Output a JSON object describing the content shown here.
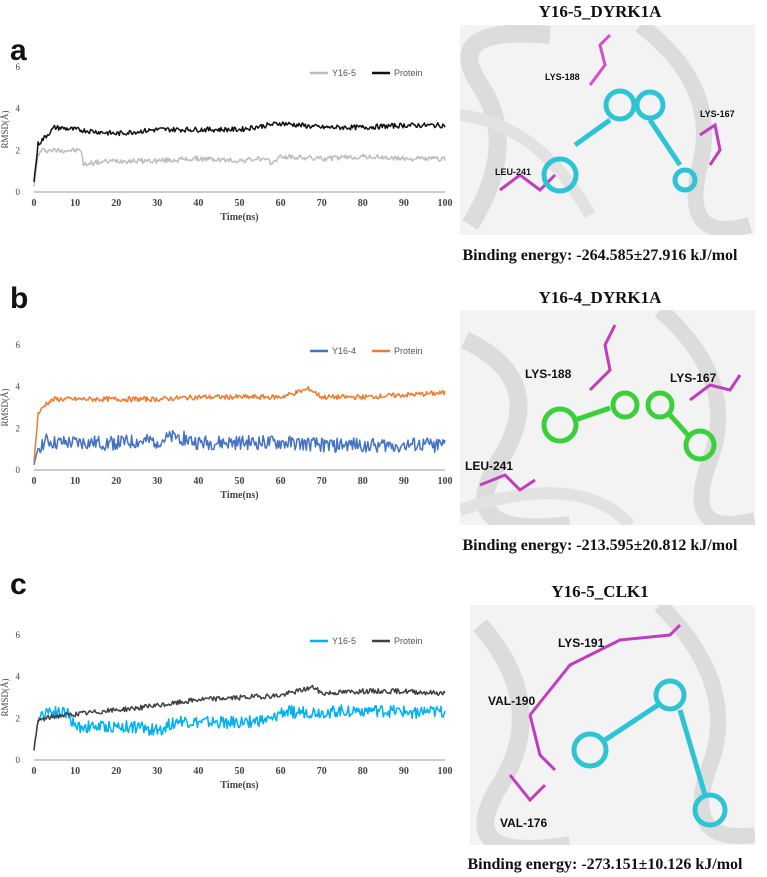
{
  "panels": [
    {
      "letter": "a",
      "complex_title": "Y16-5_DYRK1A",
      "binding_energy": "Binding energy: -264.585±27.916 kJ/mol",
      "residues": [
        "LYS-188",
        "LYS-167",
        "LEU-241"
      ],
      "ligand_color": "#2ec4d6"
    },
    {
      "letter": "b",
      "complex_title": "Y16-4_DYRK1A",
      "binding_energy": "Binding energy: -213.595±20.812 kJ/mol",
      "residues": [
        "LYS-188",
        "LYS-167",
        "LEU-241"
      ],
      "ligand_color": "#3ccf3c"
    },
    {
      "letter": "c",
      "complex_title": "Y16-5_CLK1",
      "binding_energy": "Binding energy: -273.151±10.126 kJ/mol",
      "residues": [
        "LYS-191",
        "VAL-190",
        "VAL-176"
      ],
      "ligand_color": "#2ec4d6"
    }
  ],
  "chart_data": [
    {
      "type": "line",
      "title": "",
      "xlabel": "Time(ns)",
      "ylabel": "RMSD(Å)",
      "xlim": [
        0,
        100
      ],
      "ylim": [
        0,
        6
      ],
      "xticks": [
        "0",
        "10",
        "20",
        "30",
        "40",
        "50",
        "60",
        "70",
        "80",
        "90",
        "100"
      ],
      "yticks": [
        "0",
        "2",
        "4",
        "6"
      ],
      "legend_position": "top-right",
      "series": [
        {
          "name": "Y16-5",
          "color": "#bdbdbd",
          "x": [
            0,
            1,
            2,
            4,
            6,
            8,
            10,
            11.5,
            12,
            14,
            20,
            30,
            40,
            50,
            55,
            58,
            60,
            70,
            80,
            90,
            100
          ],
          "values": [
            0.3,
            1.8,
            2.0,
            2.0,
            2.0,
            2.0,
            2.0,
            2.0,
            1.3,
            1.4,
            1.5,
            1.5,
            1.6,
            1.5,
            1.6,
            1.4,
            1.7,
            1.6,
            1.7,
            1.6,
            1.6
          ]
        },
        {
          "name": "Protein",
          "color": "#111111",
          "x": [
            0,
            1,
            3,
            5,
            10,
            20,
            30,
            40,
            50,
            60,
            70,
            80,
            90,
            100
          ],
          "values": [
            0.5,
            2.3,
            2.7,
            3.1,
            3.0,
            2.8,
            3.0,
            3.0,
            3.0,
            3.3,
            3.1,
            3.1,
            3.2,
            3.2
          ]
        }
      ]
    },
    {
      "type": "line",
      "title": "",
      "xlabel": "Time(ns)",
      "ylabel": "RMSD(Å)",
      "xlim": [
        0,
        100
      ],
      "ylim": [
        0,
        6
      ],
      "xticks": [
        "0",
        "10",
        "20",
        "30",
        "40",
        "50",
        "60",
        "70",
        "80",
        "90",
        "100"
      ],
      "yticks": [
        "0",
        "2",
        "4",
        "6"
      ],
      "legend_position": "top-right",
      "series": [
        {
          "name": "Y16-4",
          "color": "#4472c4",
          "x": [
            0,
            1,
            3,
            5,
            10,
            20,
            30,
            35,
            40,
            50,
            60,
            70,
            80,
            90,
            100
          ],
          "values": [
            0.2,
            1.1,
            1.4,
            1.3,
            1.3,
            1.3,
            1.4,
            1.6,
            1.3,
            1.3,
            1.3,
            1.2,
            1.2,
            1.2,
            1.2
          ]
        },
        {
          "name": "Protein",
          "color": "#ed7d31",
          "x": [
            0,
            1,
            3,
            5,
            10,
            20,
            30,
            40,
            50,
            60,
            67,
            70,
            80,
            90,
            100
          ],
          "values": [
            0.4,
            2.7,
            3.2,
            3.4,
            3.4,
            3.4,
            3.4,
            3.5,
            3.5,
            3.5,
            3.9,
            3.5,
            3.5,
            3.6,
            3.7
          ]
        }
      ]
    },
    {
      "type": "line",
      "title": "",
      "xlabel": "Time(ns)",
      "ylabel": "RMSD(Å)",
      "xlim": [
        0,
        100
      ],
      "ylim": [
        0,
        6
      ],
      "xticks": [
        "0",
        "10",
        "20",
        "30",
        "40",
        "50",
        "60",
        "70",
        "80",
        "90",
        "100"
      ],
      "yticks": [
        "0",
        "2",
        "4",
        "6"
      ],
      "legend_position": "top-right",
      "series": [
        {
          "name": "Y16-5",
          "color": "#00b0f0",
          "x": [
            0,
            1,
            3,
            5,
            8,
            10,
            15,
            20,
            25,
            30,
            32,
            35,
            40,
            50,
            55,
            58,
            60,
            70,
            80,
            90,
            100
          ],
          "values": [
            0.5,
            2.0,
            2.4,
            2.3,
            2.3,
            1.6,
            1.6,
            1.6,
            1.6,
            1.4,
            1.6,
            1.9,
            1.8,
            1.8,
            1.9,
            1.9,
            2.3,
            2.3,
            2.4,
            2.3,
            2.3
          ]
        },
        {
          "name": "Protein",
          "color": "#404040",
          "x": [
            0,
            1,
            3,
            5,
            10,
            20,
            30,
            40,
            50,
            60,
            68,
            70,
            80,
            90,
            100
          ],
          "values": [
            0.5,
            1.9,
            2.0,
            2.1,
            2.2,
            2.4,
            2.6,
            2.9,
            3.0,
            3.1,
            3.5,
            3.2,
            3.3,
            3.3,
            3.2
          ]
        }
      ]
    }
  ]
}
